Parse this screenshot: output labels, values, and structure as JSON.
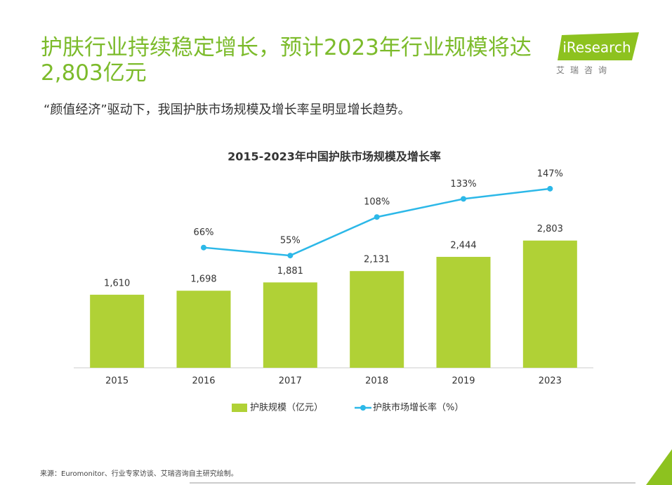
{
  "header": {
    "title": "护肤行业持续稳定增长，预计2023年行业规模将达2,803亿元",
    "subtitle": "“颜值经济”驱动下，我国护肤市场规模及增长率呈明显增长趋势。",
    "logo": "iResearch",
    "logo_subtitle": "艾瑞咨询"
  },
  "footer": {
    "source": "来源：Euromonitor、行业专家访谈、艾瑞咨询自主研究绘制。"
  },
  "chart_data": {
    "type": "bar",
    "title": "2015-2023年中国护肤市场规模及增长率",
    "categories": [
      "2015",
      "2016",
      "2017",
      "2018",
      "2019",
      "2023"
    ],
    "series": [
      {
        "name": "护肤规模（亿元）",
        "type": "bar",
        "color": "#b0d136",
        "values": [
          1610,
          1698,
          1881,
          2131,
          2444,
          2803
        ],
        "value_labels": [
          "1,610",
          "1,698",
          "1,881",
          "2,131",
          "2,444",
          "2,803"
        ]
      },
      {
        "name": "护肤市场增长率（%）",
        "type": "line",
        "axis": "y2",
        "color": "#2cb8e8",
        "values": [
          null,
          66,
          55,
          108,
          133,
          147
        ],
        "value_labels": [
          null,
          "66%",
          "55%",
          "108%",
          "133%",
          "147%"
        ]
      }
    ],
    "ylim": [
      0,
      3000
    ],
    "y2lim": [
      0,
      200
    ],
    "legend": "bottom"
  }
}
